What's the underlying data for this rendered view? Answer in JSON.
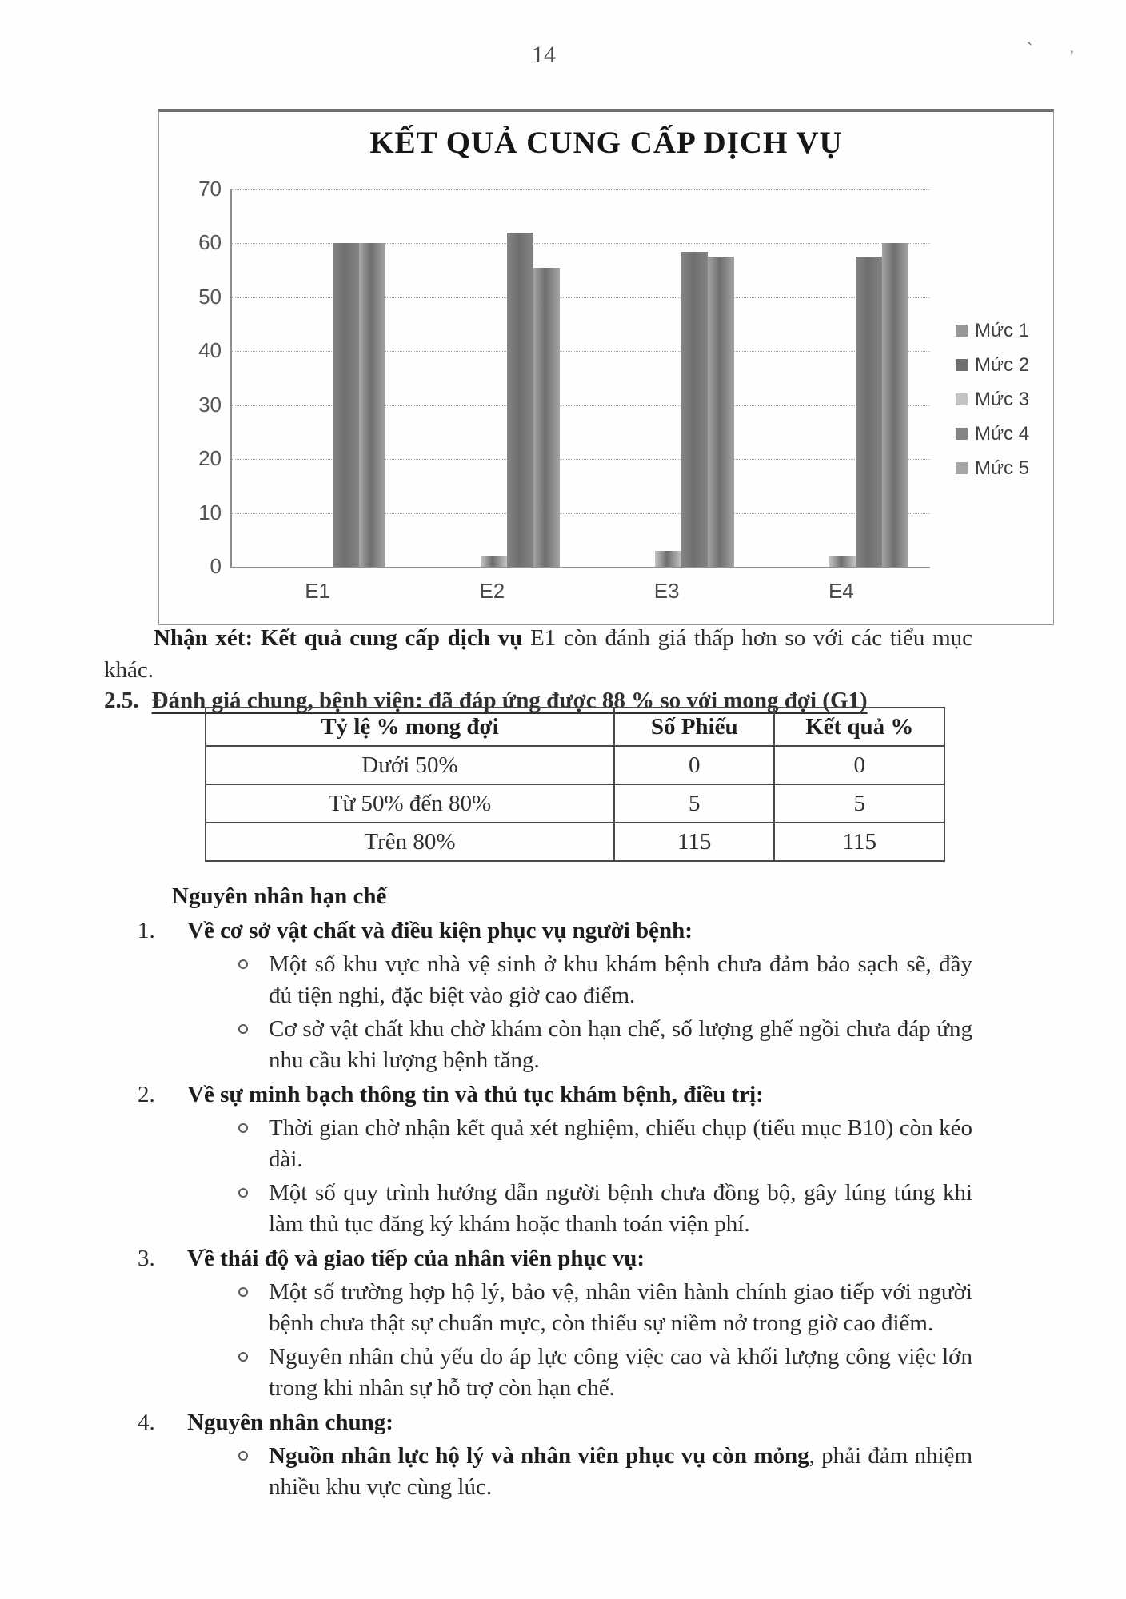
{
  "page": {
    "number": "14",
    "scan_marks": [
      "`",
      "'"
    ]
  },
  "chart_data": {
    "type": "bar",
    "title": "KẾT QUẢ CUNG CẤP DỊCH VỤ",
    "categories": [
      "E1",
      "E2",
      "E3",
      "E4"
    ],
    "series": [
      {
        "name": "Mức 1",
        "values": [
          0,
          0,
          0,
          0
        ]
      },
      {
        "name": "Mức 2",
        "values": [
          0,
          0,
          0,
          0
        ]
      },
      {
        "name": "Mức 3",
        "values": [
          0,
          2,
          3,
          2
        ]
      },
      {
        "name": "Mức 4",
        "values": [
          60,
          62,
          58.5,
          57.5
        ]
      },
      {
        "name": "Mức 5",
        "values": [
          60,
          55.5,
          57.5,
          60
        ]
      }
    ],
    "ylim": [
      0,
      70
    ],
    "y_ticks": [
      0,
      10,
      20,
      30,
      40,
      50,
      60,
      70
    ],
    "xlabel": "",
    "ylabel": "",
    "grid": true,
    "legend_position": "right",
    "series_colors": [
      "#969696",
      "#6f6f6f",
      "#c4c4c4",
      "#848484",
      "#a5a5a5"
    ]
  },
  "comment": {
    "bold": "Nhận xét: Kết quả cung cấp dịch vụ",
    "rest": "  E1 còn đánh giá thấp hơn so với các tiểu mục khác."
  },
  "section_25": {
    "number": "2.5.",
    "title": "Đánh giá chung, bệnh viện: đã đáp ứng được 88 % so với mong đợi (G1)"
  },
  "table": {
    "headers": [
      "Tỷ lệ % mong đợi",
      "Số Phiếu",
      "Kết quả %"
    ],
    "rows": [
      [
        "Dưới 50%",
        "0",
        "0"
      ],
      [
        "Từ 50% đến 80%",
        "5",
        "5"
      ],
      [
        "Trên 80%",
        "115",
        "115"
      ]
    ]
  },
  "causes": {
    "heading": "Nguyên nhân hạn chế",
    "items": [
      {
        "num": "1.",
        "title": "Về cơ sở vật chất và điều kiện phục vụ người bệnh:",
        "bullets": [
          {
            "text": "Một số khu vực nhà vệ sinh ở khu khám bệnh chưa đảm bảo sạch sẽ, đầy đủ tiện nghi, đặc biệt vào giờ cao điểm."
          },
          {
            "text": "Cơ sở vật chất khu chờ khám còn hạn chế, số lượng ghế ngồi chưa đáp ứng nhu cầu khi lượng bệnh tăng."
          }
        ]
      },
      {
        "num": "2.",
        "title": "Về sự minh bạch thông tin và thủ tục khám bệnh, điều trị:",
        "bullets": [
          {
            "text": "Thời gian chờ nhận kết quả xét nghiệm, chiếu chụp (tiểu mục B10) còn kéo dài."
          },
          {
            "text": "Một số quy trình hướng dẫn người bệnh chưa đồng bộ, gây lúng túng khi làm thủ tục đăng ký khám hoặc thanh toán viện phí."
          }
        ]
      },
      {
        "num": "3.",
        "title": "Về thái độ và giao tiếp của nhân viên phục vụ:",
        "bullets": [
          {
            "text": "Một số trường hợp hộ lý, bảo vệ, nhân viên hành chính giao tiếp với người bệnh chưa thật sự chuẩn mực, còn thiếu sự niềm nở trong giờ cao điểm."
          },
          {
            "text": "Nguyên nhân chủ yếu do áp lực công việc cao và khối lượng công việc lớn trong khi nhân sự hỗ trợ còn hạn chế."
          }
        ]
      },
      {
        "num": "4.",
        "title": "Nguyên nhân chung:",
        "bullets": [
          {
            "bold": "Nguồn nhân lực hộ lý và nhân viên phục vụ còn mỏng",
            "text": ", phải đảm nhiệm nhiều khu vực cùng lúc."
          }
        ]
      }
    ]
  }
}
